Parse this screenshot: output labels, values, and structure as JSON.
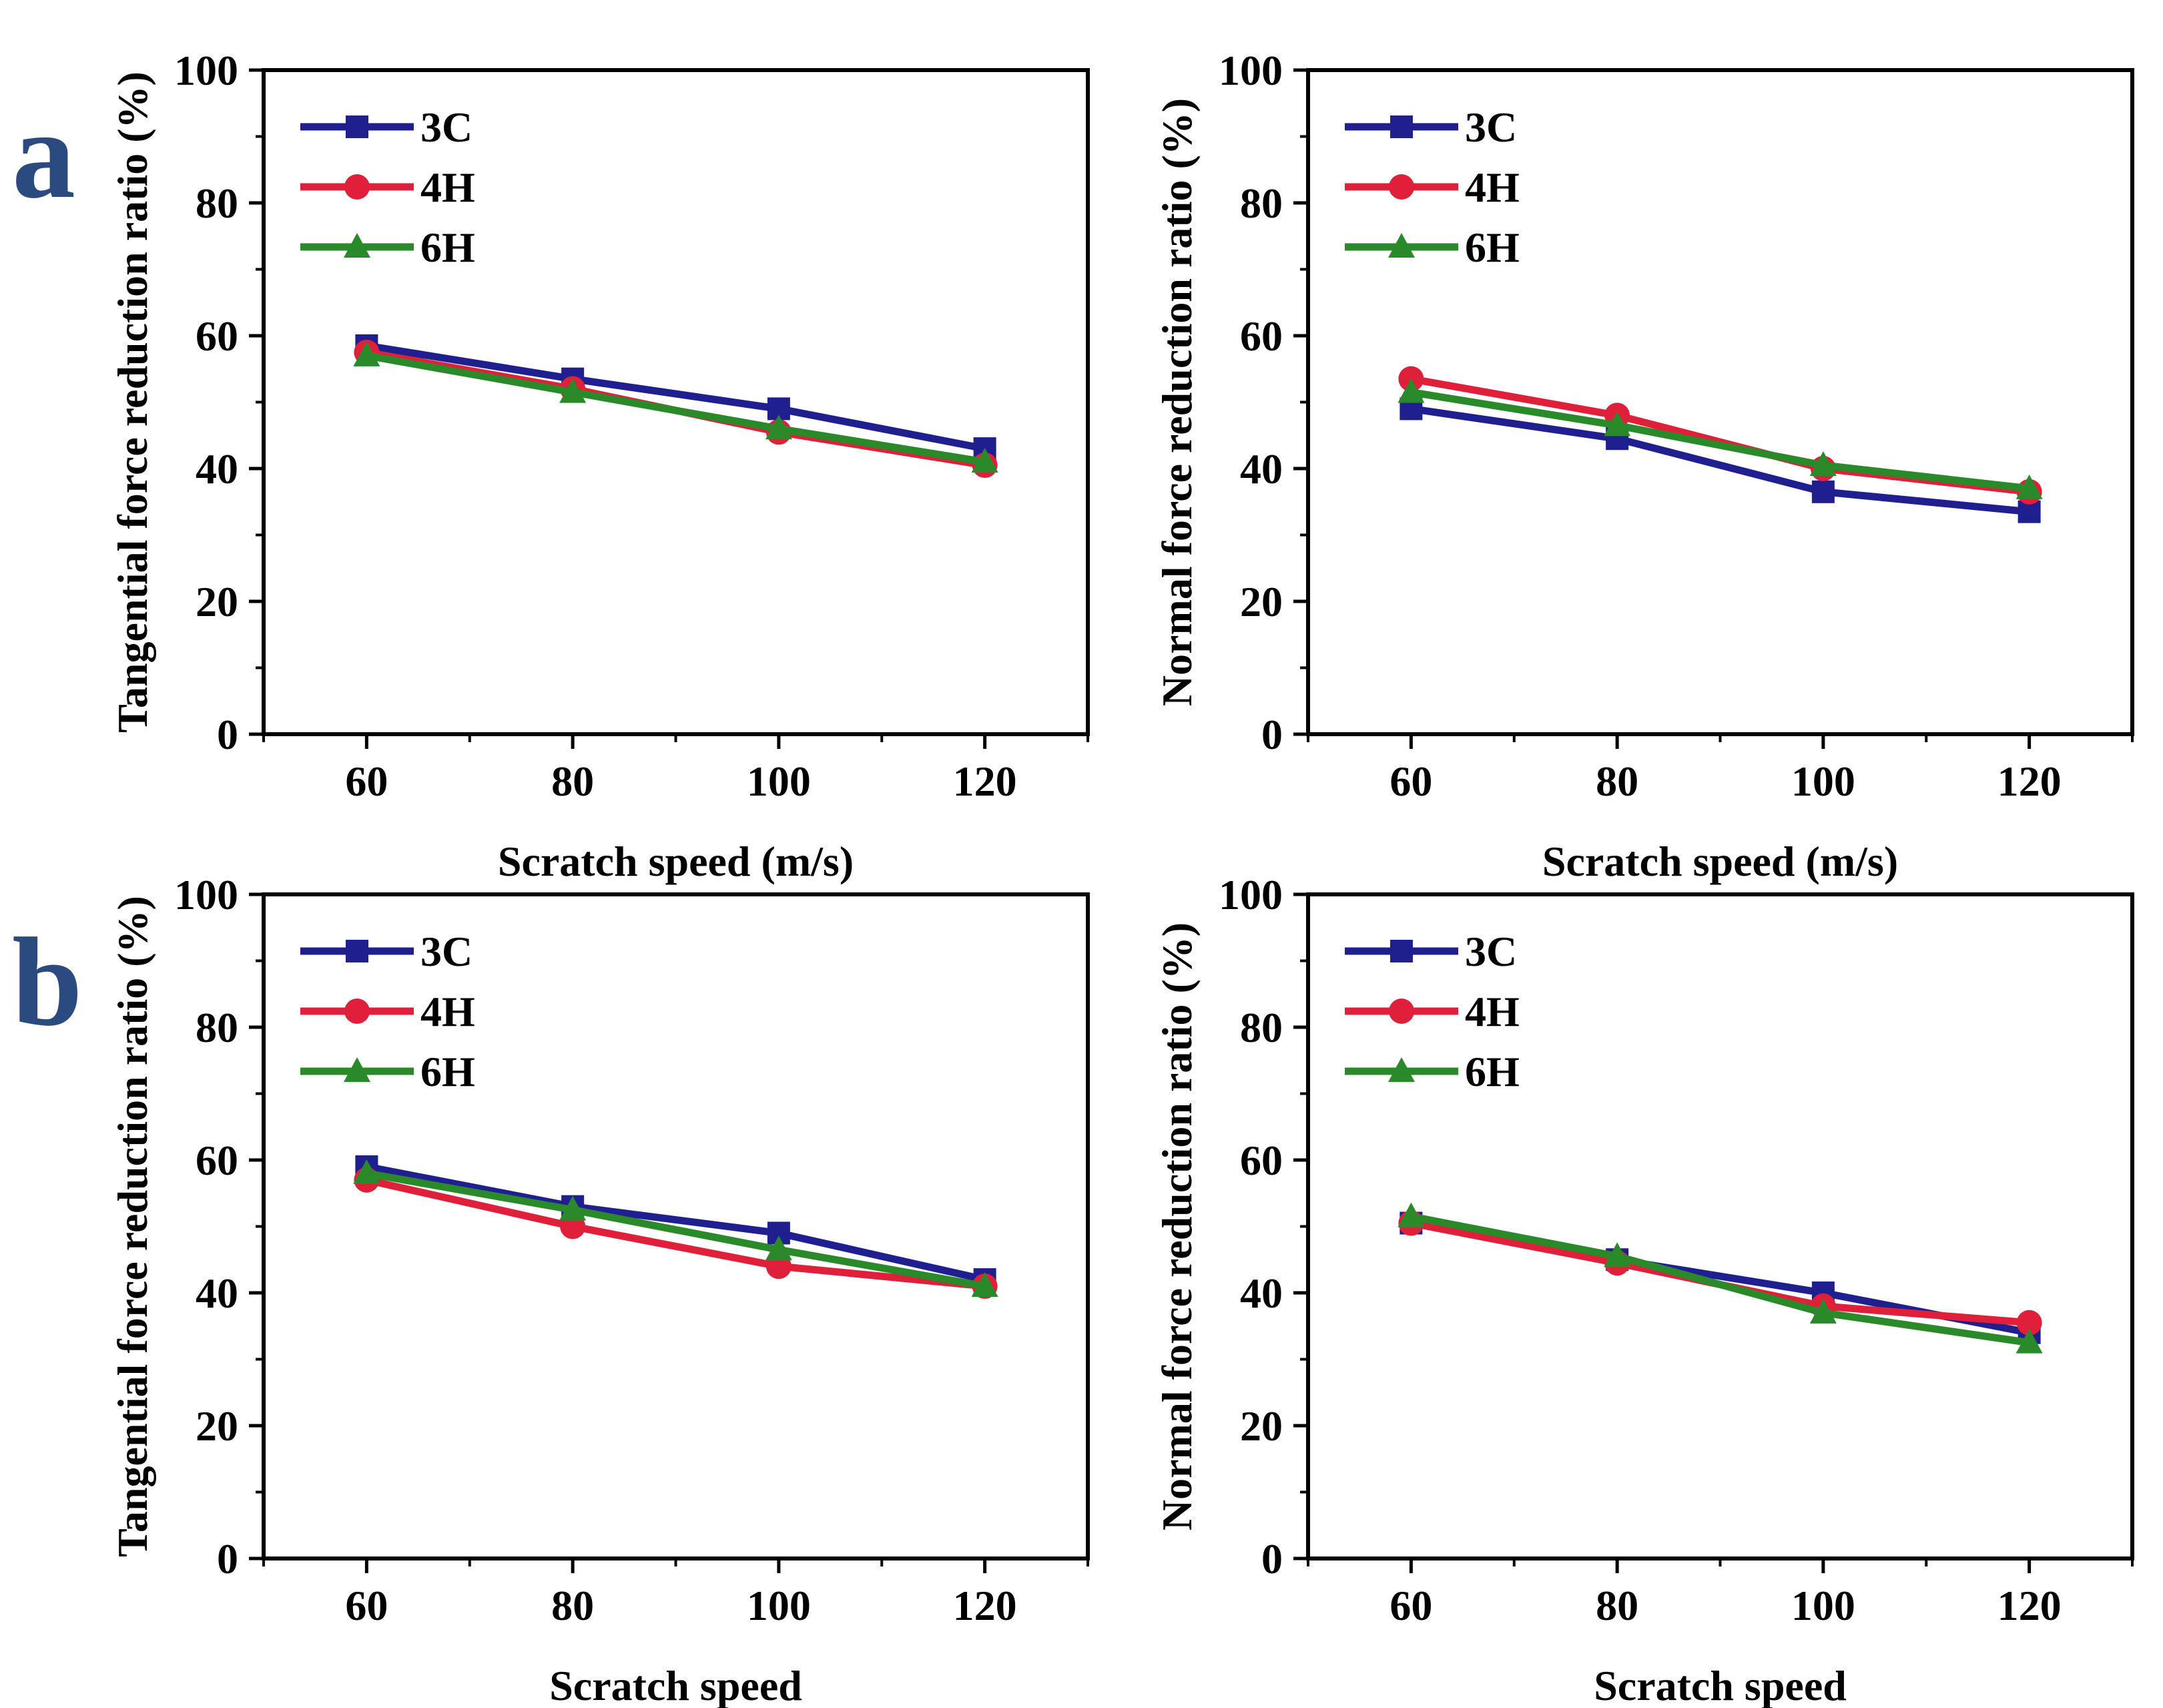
{
  "panel_labels": [
    "a",
    "b"
  ],
  "colors": {
    "3C": "#1f1f8f",
    "4H": "#e0203a",
    "6H": "#2a8a2a"
  },
  "chart_data": [
    {
      "type": "line",
      "panel": "a",
      "xlabel": "Scratch speed (m/s)",
      "ylabel": "Tangential force reduction ratio (%)",
      "x": [
        60,
        80,
        100,
        120
      ],
      "xlim": [
        50,
        130
      ],
      "ylim": [
        0,
        100
      ],
      "xticks": [
        "60",
        "80",
        "100",
        "120"
      ],
      "yticks": [
        "0",
        "20",
        "40",
        "60",
        "80",
        "100"
      ],
      "legend": "top-left",
      "series": [
        {
          "name": "3C",
          "marker": "square",
          "values": [
            58.5,
            53.5,
            49,
            43
          ]
        },
        {
          "name": "4H",
          "marker": "circle",
          "values": [
            57.5,
            52,
            45.5,
            40.5
          ]
        },
        {
          "name": "6H",
          "marker": "triangle",
          "values": [
            57,
            51.5,
            46,
            41
          ]
        }
      ]
    },
    {
      "type": "line",
      "panel": "a",
      "xlabel": "Scratch speed (m/s)",
      "ylabel": "Normal force reduction ratio (%)",
      "x": [
        60,
        80,
        100,
        120
      ],
      "xlim": [
        50,
        130
      ],
      "ylim": [
        0,
        100
      ],
      "xticks": [
        "60",
        "80",
        "100",
        "120"
      ],
      "yticks": [
        "0",
        "20",
        "40",
        "60",
        "80",
        "100"
      ],
      "legend": "top-left",
      "series": [
        {
          "name": "3C",
          "marker": "square",
          "values": [
            49,
            44.5,
            36.5,
            33.5
          ]
        },
        {
          "name": "4H",
          "marker": "circle",
          "values": [
            53.5,
            48,
            40,
            36.5
          ]
        },
        {
          "name": "6H",
          "marker": "triangle",
          "values": [
            51.5,
            46.5,
            40.5,
            37
          ]
        }
      ]
    },
    {
      "type": "line",
      "panel": "b",
      "xlabel": "Scratch speed",
      "ylabel": "Tangential force reduction ratio (%)",
      "x": [
        60,
        80,
        100,
        120
      ],
      "xlim": [
        50,
        130
      ],
      "ylim": [
        0,
        100
      ],
      "xticks": [
        "60",
        "80",
        "100",
        "120"
      ],
      "yticks": [
        "0",
        "20",
        "40",
        "60",
        "80",
        "100"
      ],
      "legend": "top-left",
      "series": [
        {
          "name": "3C",
          "marker": "square",
          "values": [
            59,
            53,
            49,
            42
          ]
        },
        {
          "name": "4H",
          "marker": "circle",
          "values": [
            57,
            50,
            44,
            41
          ]
        },
        {
          "name": "6H",
          "marker": "triangle",
          "values": [
            58,
            52.5,
            46.5,
            41
          ]
        }
      ]
    },
    {
      "type": "line",
      "panel": "b",
      "xlabel": "Scratch speed",
      "ylabel": "Normal force reduction ratio (%)",
      "x": [
        60,
        80,
        100,
        120
      ],
      "xlim": [
        50,
        130
      ],
      "ylim": [
        0,
        100
      ],
      "xticks": [
        "60",
        "80",
        "100",
        "120"
      ],
      "yticks": [
        "0",
        "20",
        "40",
        "60",
        "80",
        "100"
      ],
      "legend": "top-left",
      "series": [
        {
          "name": "3C",
          "marker": "square",
          "values": [
            50.5,
            45,
            40,
            34
          ]
        },
        {
          "name": "4H",
          "marker": "circle",
          "values": [
            50.5,
            44.5,
            38,
            35.5
          ]
        },
        {
          "name": "6H",
          "marker": "triangle",
          "values": [
            51.5,
            45.5,
            37,
            32.5
          ]
        }
      ]
    }
  ]
}
